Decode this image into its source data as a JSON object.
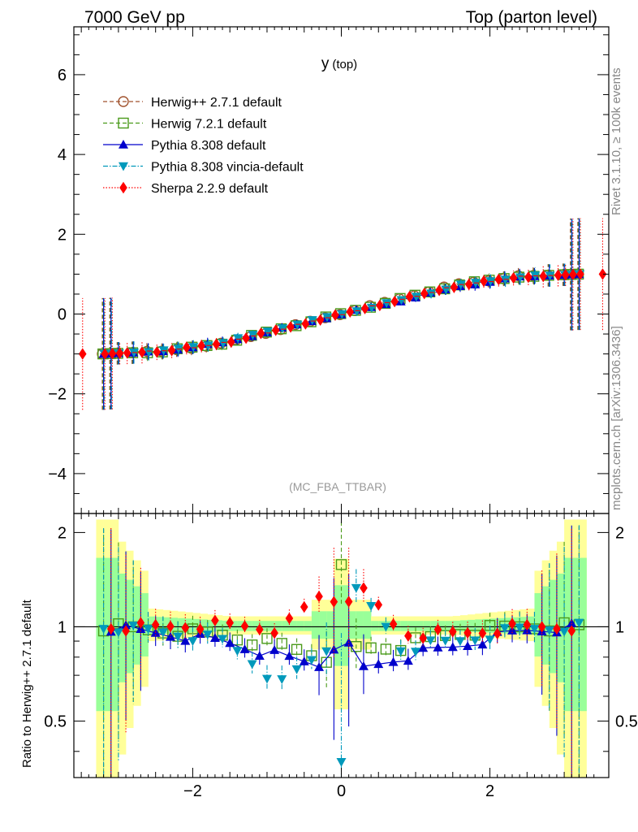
{
  "header": {
    "left": "7000 GeV pp",
    "right": "Top (parton level)"
  },
  "side_text": {
    "rivet": "Rivet 3.1.10, ≥ 100k events",
    "mcplots": "mcplots.cern.ch [arXiv:1306.3436]"
  },
  "colors": {
    "herwigpp": "#a0522d",
    "herwig7": "#4a9a1a",
    "pythia": "#0000cc",
    "vincia": "#0099bb",
    "sherpa": "#ff0000",
    "band_outer": "#ffff99",
    "band_inner": "#99ff99"
  },
  "chart_data": [
    {
      "type": "scatter",
      "title": "y",
      "title_suffix": "(top)",
      "analysis_label": "(MC_FBA_TTBAR)",
      "xlim": [
        -3.6,
        3.6
      ],
      "ylim": [
        -5.0,
        7.2
      ],
      "yticks": [
        "−4",
        "−2",
        "0",
        "2",
        "4",
        "6"
      ],
      "ytick_values": [
        -4,
        -2,
        0,
        2,
        4,
        6
      ],
      "legend_placement": "top-left",
      "series": [
        {
          "name": "Herwig++ 2.7.1 default",
          "marker": "circle-open",
          "line": "dashed",
          "color_key": "herwigpp",
          "x": [
            -3.2,
            -2.4,
            -1.6,
            -0.8,
            0.0,
            0.8,
            1.6,
            2.4,
            3.2
          ],
          "y": [
            -1.0,
            -0.94,
            -0.75,
            -0.38,
            0.0,
            0.38,
            0.75,
            0.94,
            1.0
          ]
        },
        {
          "name": "Herwig 7.2.1 default",
          "marker": "square-open",
          "line": "dashed",
          "color_key": "herwig7",
          "x": [
            -3.2,
            -2.4,
            -1.6,
            -0.8,
            0.0,
            0.8,
            1.6,
            2.4,
            3.2
          ],
          "y": [
            -1.0,
            -0.94,
            -0.74,
            -0.37,
            0.0,
            0.37,
            0.74,
            0.94,
            1.0
          ]
        },
        {
          "name": "Pythia 8.308 default",
          "marker": "triangle-up",
          "line": "solid",
          "color_key": "pythia",
          "x": [
            -3.2,
            -2.4,
            -1.6,
            -0.8,
            0.0,
            0.8,
            1.6,
            2.4,
            3.2
          ],
          "y": [
            -1.0,
            -0.93,
            -0.72,
            -0.36,
            0.0,
            0.33,
            0.7,
            0.93,
            1.0
          ]
        },
        {
          "name": "Pythia 8.308 vincia-default",
          "marker": "triangle-down",
          "line": "dashdot",
          "color_key": "vincia",
          "x": [
            -3.2,
            -2.4,
            -1.6,
            -0.8,
            0.0,
            0.8,
            1.6,
            2.4,
            3.2
          ],
          "y": [
            -1.0,
            -0.93,
            -0.72,
            -0.34,
            0.0,
            0.34,
            0.72,
            0.93,
            1.0
          ]
        },
        {
          "name": "Sherpa 2.2.9 default",
          "marker": "diamond",
          "line": "dotted",
          "color_key": "sherpa",
          "x": [
            -3.5,
            -3.2,
            -2.4,
            -1.6,
            -0.8,
            0.0,
            0.8,
            1.6,
            2.4,
            3.2,
            3.5
          ],
          "y": [
            -1.0,
            -1.0,
            -0.93,
            -0.73,
            -0.37,
            0.0,
            0.37,
            0.73,
            0.93,
            1.0,
            1.0
          ]
        }
      ]
    },
    {
      "type": "scatter",
      "ylabel": "Ratio to Herwig++ 2.7.1 default",
      "xlim": [
        -3.6,
        3.6
      ],
      "ylim": [
        0.33,
        2.3
      ],
      "yticks": [
        "0.5",
        "1",
        "2"
      ],
      "ytick_values": [
        0.5,
        1,
        2
      ],
      "xticks": [
        "−2",
        "0",
        "2"
      ],
      "xtick_values": [
        -2,
        0,
        2
      ],
      "band_center": 1,
      "series": [
        {
          "name": "Herwig 7.2.1 default",
          "color_key": "herwig7",
          "x": [
            -3.2,
            -2.4,
            -1.6,
            -0.8,
            -0.2,
            0.0,
            0.2,
            0.8,
            1.6,
            2.4,
            3.2
          ],
          "y": [
            1.0,
            0.97,
            0.94,
            0.87,
            0.8,
            1.55,
            0.85,
            0.87,
            0.96,
            1.0,
            1.0
          ]
        },
        {
          "name": "Pythia 8.308 default",
          "color_key": "pythia",
          "x": [
            -3.2,
            -2.4,
            -1.6,
            -0.8,
            -0.2,
            0.0,
            0.2,
            0.8,
            1.6,
            2.4,
            3.2
          ],
          "y": [
            1.0,
            0.95,
            0.9,
            0.8,
            0.75,
            1.0,
            0.72,
            0.8,
            0.87,
            0.97,
            1.0
          ]
        },
        {
          "name": "Pythia 8.308 vincia-default",
          "color_key": "vincia",
          "x": [
            -3.2,
            -2.4,
            -1.6,
            -0.8,
            -0.2,
            0.0,
            0.2,
            0.8,
            1.6,
            2.4,
            3.2
          ],
          "y": [
            1.0,
            0.96,
            0.9,
            0.65,
            0.85,
            0.4,
            1.3,
            0.85,
            0.9,
            0.98,
            1.0
          ]
        },
        {
          "name": "Sherpa 2.2.9 default",
          "color_key": "sherpa",
          "x": [
            -3.2,
            -2.4,
            -1.6,
            -0.8,
            -0.3,
            0.0,
            0.3,
            0.8,
            1.6,
            2.4,
            3.2
          ],
          "y": [
            1.0,
            1.0,
            1.02,
            0.98,
            1.25,
            1.2,
            1.3,
            0.95,
            0.95,
            1.0,
            1.0
          ]
        }
      ]
    }
  ]
}
